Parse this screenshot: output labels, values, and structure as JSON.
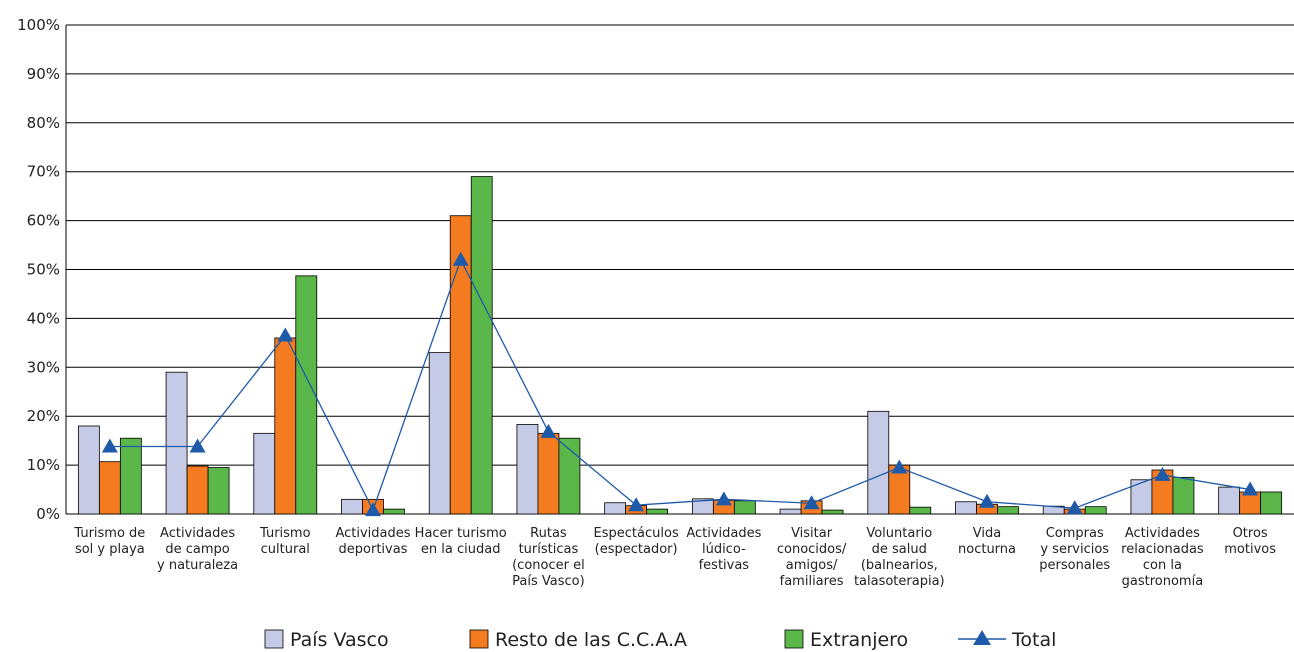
{
  "chart_data": {
    "type": "bar",
    "categories": [
      [
        "Turismo de",
        "sol y playa"
      ],
      [
        "Actividades",
        "de campo",
        "y naturaleza"
      ],
      [
        "Turismo",
        "cultural"
      ],
      [
        "Actividades",
        "deportivas"
      ],
      [
        "Hacer turismo",
        "en la ciudad"
      ],
      [
        "Rutas",
        "turísticas",
        "(conocer el",
        "País Vasco)"
      ],
      [
        "Espectáculos",
        "(espectador)"
      ],
      [
        "Actividades",
        "lúdico-",
        "festivas"
      ],
      [
        "Visitar",
        "conocidos/",
        "amigos/",
        "familiares"
      ],
      [
        "Voluntario",
        "de salud",
        "(balnearios,",
        "talasoterapia)"
      ],
      [
        "Vida",
        "nocturna"
      ],
      [
        "Compras",
        "y servicios",
        "personales"
      ],
      [
        "Actividades",
        "relacionadas",
        "con la",
        "gastronomía"
      ],
      [
        "Otros",
        "motivos"
      ]
    ],
    "series": [
      {
        "name": "País Vasco",
        "type": "bar",
        "color": "#c5cbe6",
        "values": [
          18,
          29,
          16.5,
          3,
          33,
          18.3,
          2.3,
          3.1,
          1,
          21,
          2.5,
          1.6,
          7,
          5.5
        ]
      },
      {
        "name": "Resto de las C.C.A.A",
        "type": "bar",
        "color": "#f47b20",
        "values": [
          10.7,
          9.8,
          36,
          3,
          61,
          16.5,
          1.7,
          2.8,
          2.7,
          10,
          2,
          1,
          9,
          4.5
        ]
      },
      {
        "name": "Extranjero",
        "type": "bar",
        "color": "#5bb749",
        "values": [
          15.5,
          9.5,
          48.7,
          1,
          69,
          15.5,
          1,
          2.7,
          0.8,
          1.4,
          1.5,
          1.5,
          7.5,
          4.5
        ]
      },
      {
        "name": "Total",
        "type": "line",
        "color": "#1f5aa8",
        "values": [
          13.8,
          13.8,
          36.5,
          0.8,
          52,
          16.8,
          1.8,
          3,
          2.2,
          9.5,
          2.5,
          1.2,
          8,
          5
        ]
      }
    ],
    "ylim": [
      0,
      100
    ],
    "y_ticks": [
      "0%",
      "10%",
      "20%",
      "30%",
      "40%",
      "50%",
      "60%",
      "70%",
      "80%",
      "90%",
      "100%"
    ],
    "grid": true,
    "legend_position": "bottom"
  }
}
